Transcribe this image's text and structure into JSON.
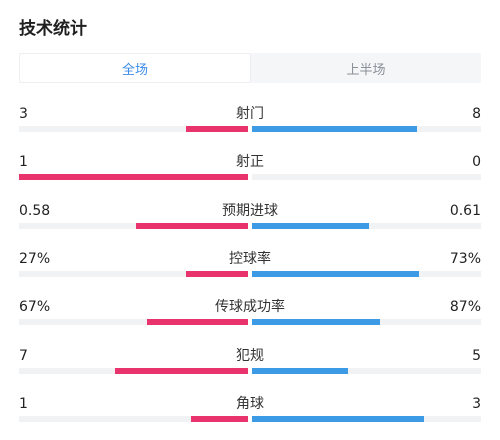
{
  "header": {
    "title": "技术统计"
  },
  "tabs": [
    {
      "label": "全场",
      "active": true
    },
    {
      "label": "上半场",
      "active": false
    }
  ],
  "colors": {
    "home": "#e8336d",
    "away": "#3d9be6",
    "tab_active": "#3d8ee8"
  },
  "stats": [
    {
      "label": "射门",
      "home": "3",
      "away": "8",
      "home_share": 0.27,
      "away_share": 0.72
    },
    {
      "label": "射正",
      "home": "1",
      "away": "0",
      "home_share": 1.0,
      "away_share": 0.0
    },
    {
      "label": "预期进球",
      "home": "0.58",
      "away": "0.61",
      "home_share": 0.49,
      "away_share": 0.51
    },
    {
      "label": "控球率",
      "home": "27%",
      "away": "73%",
      "home_share": 0.27,
      "away_share": 0.73
    },
    {
      "label": "传球成功率",
      "home": "67%",
      "away": "87%",
      "home_share": 0.44,
      "away_share": 0.56
    },
    {
      "label": "犯规",
      "home": "7",
      "away": "5",
      "home_share": 0.58,
      "away_share": 0.42
    },
    {
      "label": "角球",
      "home": "1",
      "away": "3",
      "home_share": 0.25,
      "away_share": 0.75
    }
  ]
}
